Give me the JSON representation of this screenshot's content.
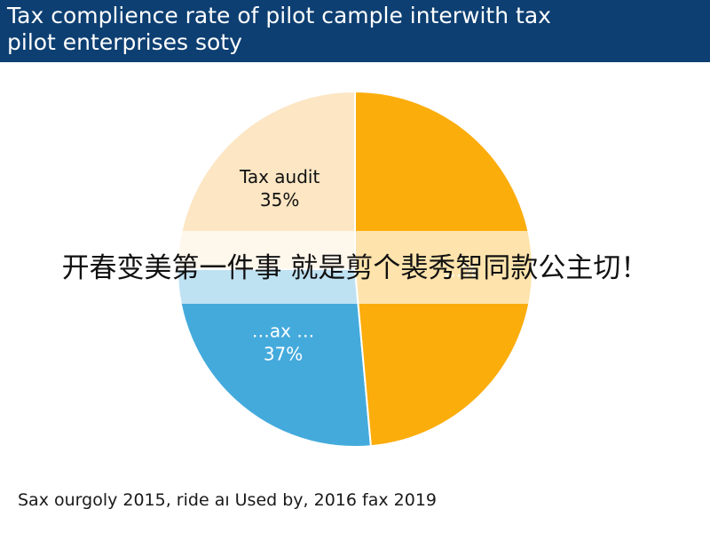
{
  "colors": {
    "header_bg": "#0d3f72",
    "header_text": "#ffffff",
    "overlay_band": "#ffffffa8"
  },
  "header": {
    "title_line1": "Tax complience rate of pilot cample interwith tax",
    "title_line2": "pilot enterprises soty"
  },
  "overlay": {
    "text": "开春变美第一件事 就是剪个裴秀智同款公主切！"
  },
  "footer": {
    "text": "Sax ourgoly 2015, ride aı Used by, 2016 fax 2019"
  },
  "chart_data": {
    "type": "pie",
    "title": "Tax complience rate of pilot cample interwith tax pilot enterprises soty",
    "slices": [
      {
        "label": "Tax audit",
        "value_label": "35%",
        "value": 35,
        "color": "#fce6c4",
        "text_color": "#111111"
      },
      {
        "label": "…ax …",
        "value_label": "37%",
        "value": 37,
        "color": "#44aadc",
        "text_color": "#ffffff"
      },
      {
        "label": "",
        "value_label": "…%",
        "value": 68,
        "color": "#fbad0c",
        "text_color": "#ffffff"
      }
    ],
    "legend": "none",
    "grid": false
  }
}
